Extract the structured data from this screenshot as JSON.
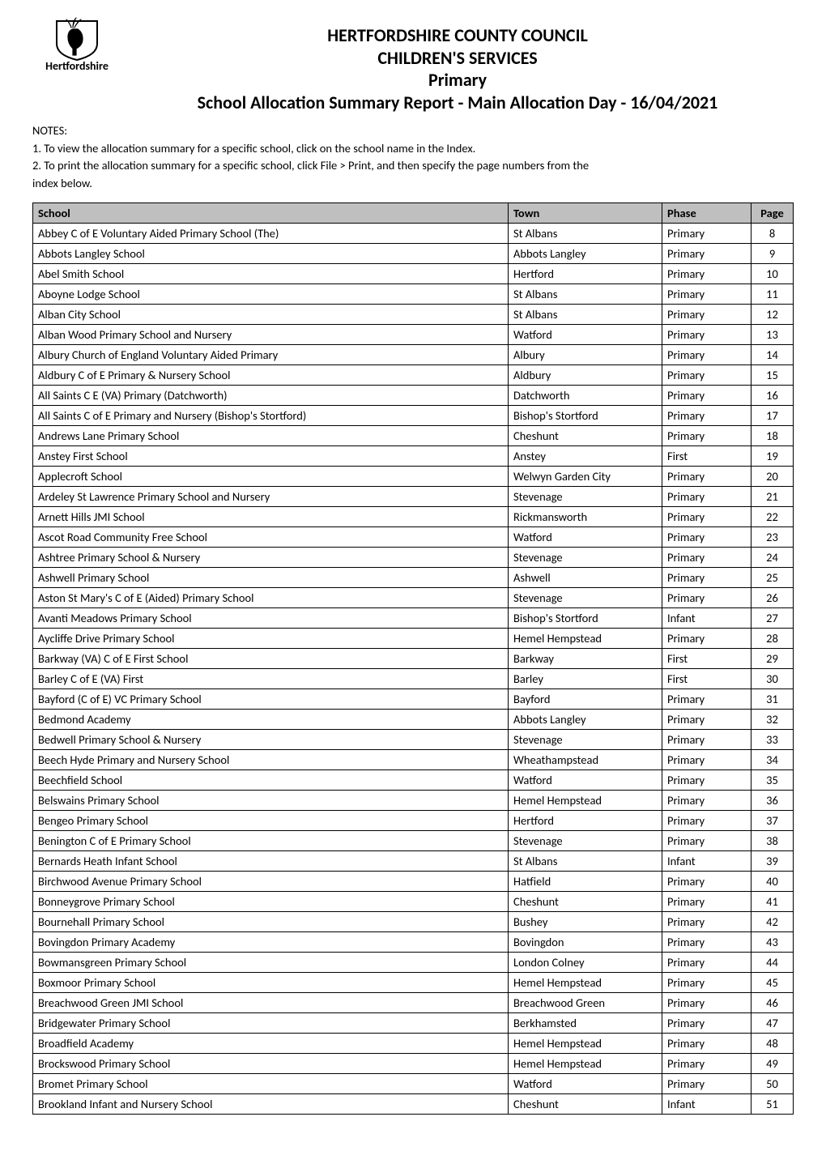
{
  "logo": {
    "word": "Hertfordshire",
    "stroke_color": "#000000",
    "fill_color": "#000000"
  },
  "titles": {
    "line1": "HERTFORDSHIRE COUNTY COUNCIL",
    "line2": "CHILDREN'S SERVICES",
    "line3": "Primary",
    "line4": "School Allocation Summary Report - Main Allocation Day - 16/04/2021"
  },
  "notes": {
    "heading": "NOTES:",
    "n1": "1. To view the allocation summary for a specific school, click on the school name in the  Index.",
    "n2a": "2. To print the allocation summary for a specific school, click File > Print, and then specify the page numbers from the",
    "n2b": "index below."
  },
  "table": {
    "header_bg": "#bfbfbf",
    "border_color": "#000000",
    "columns": {
      "school": "School",
      "town": "Town",
      "phase": "Phase",
      "page": "Page"
    },
    "rows": [
      {
        "school": "Abbey C of E Voluntary Aided Primary School (The)",
        "town": "St Albans",
        "phase": "Primary",
        "page": "8"
      },
      {
        "school": "Abbots Langley School",
        "town": "Abbots Langley",
        "phase": "Primary",
        "page": "9"
      },
      {
        "school": "Abel Smith School",
        "town": "Hertford",
        "phase": "Primary",
        "page": "10"
      },
      {
        "school": "Aboyne Lodge School",
        "town": "St Albans",
        "phase": "Primary",
        "page": "11"
      },
      {
        "school": "Alban City School",
        "town": "St Albans",
        "phase": "Primary",
        "page": "12"
      },
      {
        "school": "Alban Wood Primary School and Nursery",
        "town": "Watford",
        "phase": "Primary",
        "page": "13"
      },
      {
        "school": "Albury Church of England Voluntary Aided Primary",
        "town": "Albury",
        "phase": "Primary",
        "page": "14"
      },
      {
        "school": "Aldbury C of E Primary & Nursery School",
        "town": "Aldbury",
        "phase": "Primary",
        "page": "15"
      },
      {
        "school": "All Saints C E (VA) Primary (Datchworth)",
        "town": "Datchworth",
        "phase": "Primary",
        "page": "16"
      },
      {
        "school": "All Saints C of E Primary and Nursery (Bishop's Stortford)",
        "town": "Bishop's Stortford",
        "phase": "Primary",
        "page": "17"
      },
      {
        "school": "Andrews Lane Primary School",
        "town": "Cheshunt",
        "phase": "Primary",
        "page": "18"
      },
      {
        "school": "Anstey First School",
        "town": "Anstey",
        "phase": "First",
        "page": "19"
      },
      {
        "school": "Applecroft School",
        "town": "Welwyn Garden City",
        "phase": "Primary",
        "page": "20"
      },
      {
        "school": "Ardeley St Lawrence Primary School and Nursery",
        "town": "Stevenage",
        "phase": "Primary",
        "page": "21"
      },
      {
        "school": "Arnett Hills JMI School",
        "town": "Rickmansworth",
        "phase": "Primary",
        "page": "22"
      },
      {
        "school": "Ascot Road Community Free School",
        "town": "Watford",
        "phase": "Primary",
        "page": "23"
      },
      {
        "school": "Ashtree Primary School & Nursery",
        "town": "Stevenage",
        "phase": "Primary",
        "page": "24"
      },
      {
        "school": "Ashwell Primary School",
        "town": "Ashwell",
        "phase": "Primary",
        "page": "25"
      },
      {
        "school": "Aston St Mary's C of E (Aided) Primary School",
        "town": "Stevenage",
        "phase": "Primary",
        "page": "26"
      },
      {
        "school": "Avanti Meadows Primary School",
        "town": "Bishop's Stortford",
        "phase": "Infant",
        "page": "27"
      },
      {
        "school": "Aycliffe Drive Primary School",
        "town": "Hemel Hempstead",
        "phase": "Primary",
        "page": "28"
      },
      {
        "school": "Barkway (VA) C of E First School",
        "town": "Barkway",
        "phase": "First",
        "page": "29"
      },
      {
        "school": "Barley C of E (VA) First",
        "town": "Barley",
        "phase": "First",
        "page": "30"
      },
      {
        "school": "Bayford (C of E) VC Primary School",
        "town": "Bayford",
        "phase": "Primary",
        "page": "31"
      },
      {
        "school": "Bedmond Academy",
        "town": "Abbots Langley",
        "phase": "Primary",
        "page": "32"
      },
      {
        "school": "Bedwell Primary School & Nursery",
        "town": "Stevenage",
        "phase": "Primary",
        "page": "33"
      },
      {
        "school": "Beech Hyde Primary and Nursery School",
        "town": "Wheathampstead",
        "phase": "Primary",
        "page": "34"
      },
      {
        "school": "Beechfield School",
        "town": "Watford",
        "phase": "Primary",
        "page": "35"
      },
      {
        "school": "Belswains Primary School",
        "town": "Hemel Hempstead",
        "phase": "Primary",
        "page": "36"
      },
      {
        "school": "Bengeo Primary School",
        "town": "Hertford",
        "phase": "Primary",
        "page": "37"
      },
      {
        "school": "Benington C of E Primary School",
        "town": "Stevenage",
        "phase": "Primary",
        "page": "38"
      },
      {
        "school": "Bernards Heath Infant School",
        "town": "St Albans",
        "phase": "Infant",
        "page": "39"
      },
      {
        "school": "Birchwood Avenue Primary School",
        "town": "Hatfield",
        "phase": "Primary",
        "page": "40"
      },
      {
        "school": "Bonneygrove Primary School",
        "town": "Cheshunt",
        "phase": "Primary",
        "page": "41"
      },
      {
        "school": "Bournehall Primary School",
        "town": "Bushey",
        "phase": "Primary",
        "page": "42"
      },
      {
        "school": "Bovingdon Primary Academy",
        "town": "Bovingdon",
        "phase": "Primary",
        "page": "43"
      },
      {
        "school": "Bowmansgreen Primary School",
        "town": "London Colney",
        "phase": "Primary",
        "page": "44"
      },
      {
        "school": "Boxmoor Primary School",
        "town": "Hemel Hempstead",
        "phase": "Primary",
        "page": "45"
      },
      {
        "school": "Breachwood Green JMI School",
        "town": "Breachwood Green",
        "phase": "Primary",
        "page": "46"
      },
      {
        "school": "Bridgewater Primary School",
        "town": "Berkhamsted",
        "phase": "Primary",
        "page": "47"
      },
      {
        "school": "Broadfield Academy",
        "town": "Hemel Hempstead",
        "phase": "Primary",
        "page": "48"
      },
      {
        "school": "Brockswood Primary School",
        "town": "Hemel Hempstead",
        "phase": "Primary",
        "page": "49"
      },
      {
        "school": "Bromet Primary School",
        "town": "Watford",
        "phase": "Primary",
        "page": "50"
      },
      {
        "school": "Brookland Infant and Nursery School",
        "town": "Cheshunt",
        "phase": "Infant",
        "page": "51"
      }
    ]
  }
}
